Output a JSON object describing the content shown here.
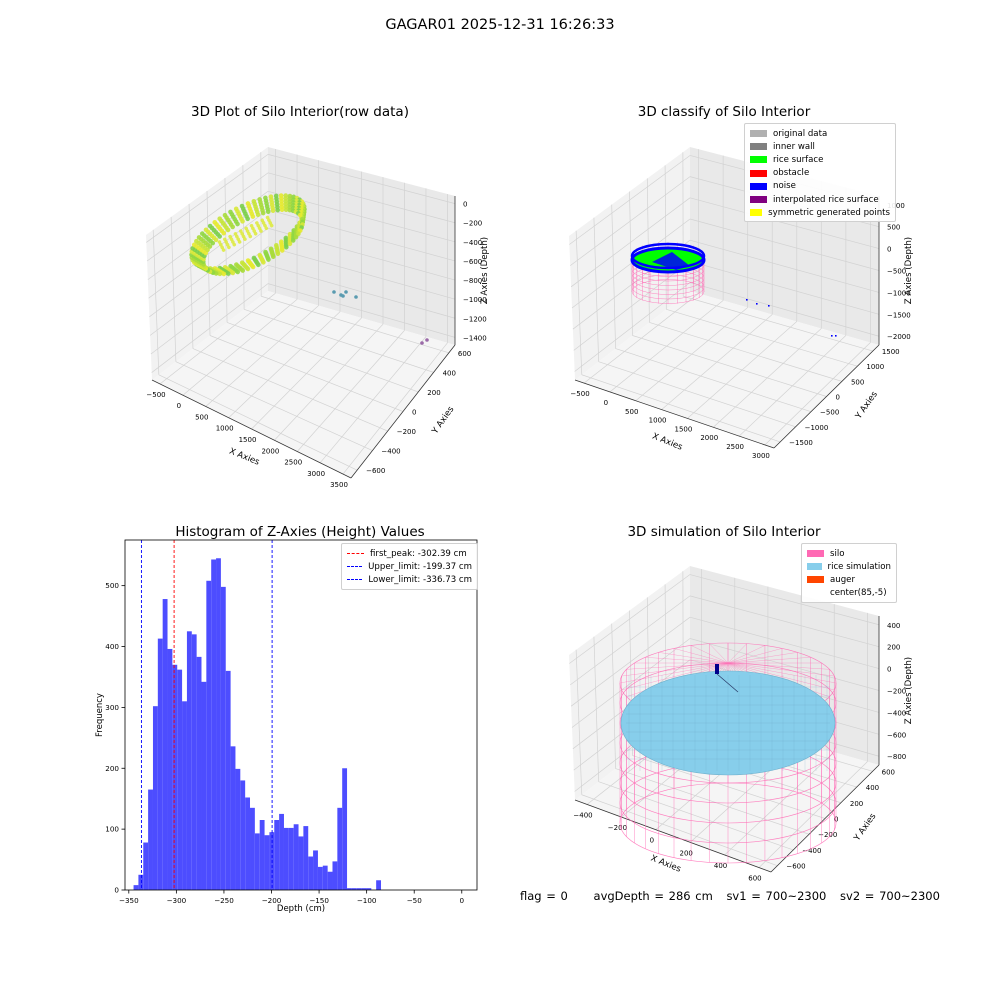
{
  "figure_title": "GAGAR01 2025-12-31 16:26:33",
  "colors": {
    "hist_bar": "#4d4dff",
    "first_peak": "#ff0000",
    "limit_lines": "#0000ff",
    "silo": "#ff69b4",
    "rice_simulation": "#87ceeb",
    "auger": "#ff4500",
    "inner_wall": "#808080",
    "rice_surface": "#00ff00",
    "noise": "#0000ff",
    "interpolated": "#800080",
    "symmetric": "#ffff00",
    "original": "#b0b0b0"
  },
  "status": {
    "flag": "flag = 0",
    "avg_depth": "avgDepth = 286 cm",
    "sv1": "sv1 = 700~2300",
    "sv2": "sv2 = 700~2300"
  },
  "chart_data": [
    {
      "type": "scatter3d",
      "title": "3D Plot of Silo Interior(row data)",
      "xlabel": "X Axies",
      "ylabel": "Y Axies",
      "zlabel": "Z Axies (Depth)",
      "xticks": [
        "−500",
        "0",
        "500",
        "1000",
        "1500",
        "2000",
        "2500",
        "3000",
        "3500"
      ],
      "yticks": [
        "−600",
        "−400",
        "−200",
        "0",
        "200",
        "400",
        "600"
      ],
      "zticks": [
        "0",
        "−200",
        "−400",
        "−600",
        "−800",
        "−1000",
        "−1200",
        "−1400"
      ],
      "xlim": [
        -600,
        3600
      ],
      "ylim": [
        -650,
        650
      ],
      "zlim": [
        -1500,
        50
      ],
      "grid": true
    },
    {
      "type": "scatter3d",
      "title": "3D classify of Silo Interior",
      "xlabel": "X Axies",
      "ylabel": "Y Axies",
      "zlabel": "Z Axies (Depth)",
      "xticks": [
        "−500",
        "0",
        "500",
        "1000",
        "1500",
        "2000",
        "2500",
        "3000"
      ],
      "yticks": [
        "−1500",
        "−1000",
        "−500",
        "0",
        "500",
        "1000",
        "1500"
      ],
      "zticks": [
        "1000",
        "500",
        "0",
        "−500",
        "−1000",
        "−1500",
        "−2000"
      ],
      "legend": [
        "original data",
        "inner wall",
        "rice surface",
        "obstacle",
        "noise",
        "interpolated rice surface",
        "symmetric generated points"
      ],
      "legend_position": "top-right",
      "grid": true
    },
    {
      "type": "bar",
      "title": "Histogram of Z-Axies (Height) Values",
      "xlabel": "Depth (cm)",
      "ylabel": "Frequency",
      "xlim": [
        -354,
        16
      ],
      "ylim": [
        0,
        575
      ],
      "xticks": [
        -350,
        -300,
        -250,
        -200,
        -150,
        -100,
        -50,
        0
      ],
      "yticks": [
        0,
        100,
        200,
        300,
        400,
        500
      ],
      "bin_start": -345,
      "bin_width": 5.1,
      "values": [
        8,
        25,
        78,
        165,
        302,
        413,
        478,
        396,
        370,
        362,
        310,
        425,
        420,
        383,
        342,
        508,
        543,
        545,
        498,
        360,
        236,
        199,
        180,
        152,
        135,
        93,
        115,
        90,
        95,
        115,
        125,
        102,
        102,
        108,
        88,
        105,
        55,
        65,
        38,
        40,
        30,
        47,
        135,
        200,
        3,
        3,
        3,
        3,
        3,
        0,
        16
      ],
      "lines": [
        {
          "label": "first_peak: -302.39 cm",
          "x": -302.39,
          "color": "#ff0000"
        },
        {
          "label": "Upper_limit: -199.37 cm",
          "x": -199.37,
          "color": "#0000ff"
        },
        {
          "label": "Lower_limit: -336.73 cm",
          "x": -336.73,
          "color": "#0000ff"
        }
      ],
      "legend_position": "top-right",
      "grid": false
    },
    {
      "type": "surface3d",
      "title": "3D simulation of Silo Interior",
      "xlabel": "X Axies",
      "ylabel": "Y Axies",
      "zlabel": "Z Axies (Depth)",
      "xticks": [
        "−400",
        "−200",
        "0",
        "200",
        "400",
        "600"
      ],
      "yticks": [
        "−600",
        "−400",
        "−200",
        "0",
        "200",
        "400",
        "600"
      ],
      "zticks": [
        "400",
        "200",
        "0",
        "−200",
        "−400",
        "−600",
        "−800"
      ],
      "legend": [
        "silo",
        "rice simulation",
        "auger",
        "center(85,-5)"
      ],
      "legend_position": "top-right",
      "grid": true
    }
  ]
}
